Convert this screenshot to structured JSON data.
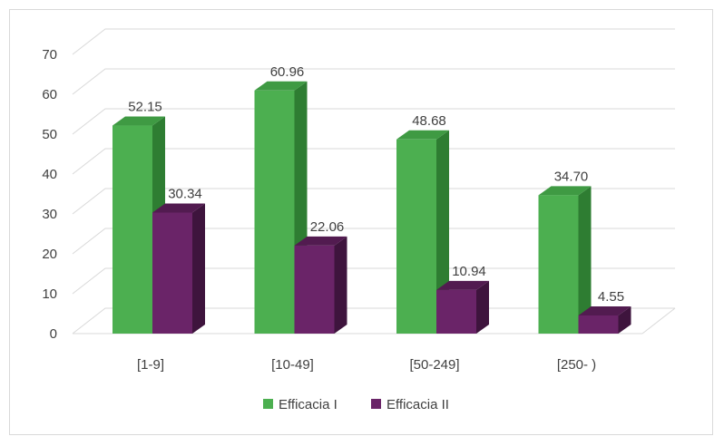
{
  "chart_data": {
    "type": "bar",
    "style": "3d-clustered-column",
    "categories": [
      "[1-9]",
      "[10-49]",
      "[50-249]",
      "[250- )"
    ],
    "series": [
      {
        "name": "Efficacia I",
        "values": [
          52.15,
          60.96,
          48.68,
          34.7
        ],
        "labels": [
          "52.15",
          "60.96",
          "48.68",
          "34.70"
        ],
        "color": "#4caf50",
        "side_color": "#2e7d32",
        "top_color": "#3f9a43"
      },
      {
        "name": "Efficacia II",
        "values": [
          30.34,
          22.06,
          10.94,
          4.55
        ],
        "labels": [
          "30.34",
          "22.06",
          "10.94",
          "4.55"
        ],
        "color": "#6a2468",
        "side_color": "#3e143d",
        "top_color": "#521b50"
      }
    ],
    "title": "",
    "xlabel": "",
    "ylabel": "",
    "ylim": [
      0,
      70
    ],
    "yticks": [
      "0",
      "10",
      "20",
      "30",
      "40",
      "50",
      "60",
      "70"
    ],
    "grid": true,
    "legend_position": "bottom"
  }
}
